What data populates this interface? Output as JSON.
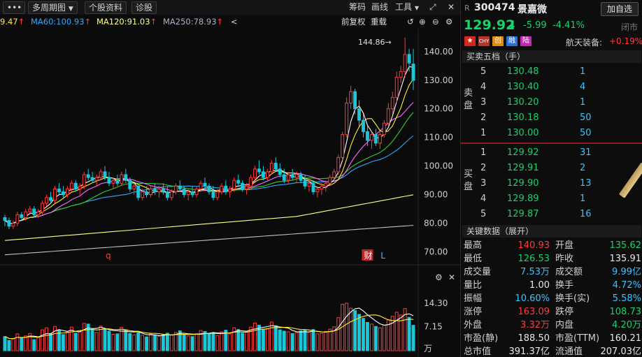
{
  "toolbar": {
    "menu_glyph": "•••",
    "multi_period": "多周期图",
    "stock_info": "个股资料",
    "diagnose": "诊股",
    "chips": "筹码",
    "draw_line": "画线",
    "tools": "工具",
    "expand_glyph": "⤢",
    "close_glyph": "✕"
  },
  "ma_legend": {
    "ma_partial": "9.47",
    "ma60": "MA60:100.93",
    "ma120": "MA120:91.03",
    "ma250": "MA250:78.93",
    "up_arrow": "↑",
    "collapse": "<",
    "adjust": "前复权",
    "reset": "重载"
  },
  "colors": {
    "up": "#ff3b3b",
    "down": "#18c8d8",
    "ma5": "#ffffff",
    "ma10": "#ffee33",
    "ma20": "#ff66ff",
    "ma30": "#33cc33",
    "ma60": "#2fa8ff",
    "ma120": "#ffff88",
    "ma250": "#c0c0c0"
  },
  "chart": {
    "price_ticks": [
      "140.00",
      "130.00",
      "120.00",
      "110.00",
      "100.00",
      "90.00",
      "80.00",
      "70.00"
    ],
    "high_label": "144.86→",
    "markers": [
      {
        "label": "q",
        "boxed": false
      },
      {
        "label": "财",
        "boxed": true
      },
      {
        "label": "L",
        "boxed": false
      }
    ],
    "volume_ticks": [
      "14.30",
      "7.15",
      "万"
    ]
  },
  "chart_data": {
    "type": "candlestick",
    "ylim": [
      66,
      148
    ],
    "volume_max": 14.3,
    "candles": [
      [
        82,
        83,
        79,
        81
      ],
      [
        81,
        82,
        78,
        79
      ],
      [
        79,
        81,
        78,
        80
      ],
      [
        80,
        84,
        79,
        83
      ],
      [
        83,
        84,
        81,
        82
      ],
      [
        82,
        85,
        81,
        84
      ],
      [
        84,
        86,
        83,
        85
      ],
      [
        85,
        86,
        82,
        83
      ],
      [
        83,
        85,
        82,
        84
      ],
      [
        84,
        88,
        83,
        87
      ],
      [
        87,
        90,
        86,
        89
      ],
      [
        89,
        91,
        87,
        88
      ],
      [
        88,
        93,
        87,
        92
      ],
      [
        92,
        94,
        90,
        91
      ],
      [
        91,
        93,
        89,
        90
      ],
      [
        90,
        93,
        89,
        92
      ],
      [
        92,
        95,
        91,
        94
      ],
      [
        94,
        95,
        91,
        92
      ],
      [
        92,
        94,
        90,
        93
      ],
      [
        93,
        98,
        92,
        97
      ],
      [
        97,
        99,
        95,
        96
      ],
      [
        96,
        98,
        94,
        95
      ],
      [
        95,
        97,
        93,
        96
      ],
      [
        96,
        99,
        95,
        98
      ],
      [
        98,
        100,
        95,
        96
      ],
      [
        96,
        98,
        93,
        94
      ],
      [
        94,
        96,
        92,
        95
      ],
      [
        95,
        97,
        93,
        94
      ],
      [
        94,
        98,
        93,
        97
      ],
      [
        97,
        99,
        94,
        95
      ],
      [
        95,
        96,
        91,
        92
      ],
      [
        92,
        94,
        90,
        93
      ],
      [
        93,
        94,
        88,
        89
      ],
      [
        89,
        92,
        88,
        91
      ],
      [
        91,
        93,
        89,
        90
      ],
      [
        90,
        93,
        89,
        92
      ],
      [
        92,
        94,
        90,
        91
      ],
      [
        91,
        93,
        89,
        92
      ],
      [
        92,
        94,
        90,
        91
      ],
      [
        91,
        93,
        88,
        89
      ],
      [
        89,
        92,
        88,
        91
      ],
      [
        91,
        94,
        90,
        93
      ],
      [
        93,
        95,
        91,
        92
      ],
      [
        92,
        93,
        89,
        90
      ],
      [
        90,
        92,
        88,
        91
      ],
      [
        91,
        93,
        89,
        90
      ],
      [
        90,
        93,
        89,
        92
      ],
      [
        92,
        95,
        91,
        94
      ],
      [
        94,
        96,
        92,
        93
      ],
      [
        93,
        94,
        90,
        91
      ],
      [
        91,
        93,
        88,
        89
      ],
      [
        89,
        92,
        88,
        91
      ],
      [
        91,
        94,
        90,
        93
      ],
      [
        93,
        95,
        90,
        91
      ],
      [
        91,
        93,
        89,
        92
      ],
      [
        92,
        96,
        91,
        95
      ],
      [
        95,
        97,
        93,
        94
      ],
      [
        94,
        95,
        91,
        92
      ],
      [
        92,
        94,
        90,
        93
      ],
      [
        93,
        97,
        92,
        96
      ],
      [
        96,
        100,
        95,
        99
      ],
      [
        99,
        102,
        97,
        98
      ],
      [
        98,
        100,
        95,
        96
      ],
      [
        96,
        99,
        95,
        98
      ],
      [
        98,
        102,
        97,
        101
      ],
      [
        101,
        103,
        98,
        99
      ],
      [
        99,
        101,
        96,
        97
      ],
      [
        97,
        99,
        94,
        95
      ],
      [
        95,
        98,
        94,
        97
      ],
      [
        97,
        99,
        95,
        96
      ],
      [
        96,
        98,
        94,
        97
      ],
      [
        97,
        98,
        94,
        95
      ],
      [
        95,
        97,
        92,
        93
      ],
      [
        93,
        95,
        91,
        94
      ],
      [
        94,
        95,
        90,
        91
      ],
      [
        91,
        93,
        89,
        92
      ],
      [
        92,
        94,
        90,
        93
      ],
      [
        93,
        95,
        91,
        94
      ],
      [
        94,
        97,
        93,
        96
      ],
      [
        96,
        99,
        95,
        98
      ],
      [
        98,
        104,
        97,
        103
      ],
      [
        103,
        112,
        102,
        111
      ],
      [
        111,
        124,
        110,
        122
      ],
      [
        122,
        128,
        120,
        126
      ],
      [
        126,
        127,
        118,
        120
      ],
      [
        120,
        123,
        114,
        116
      ],
      [
        116,
        118,
        110,
        112
      ],
      [
        112,
        114,
        107,
        109
      ],
      [
        109,
        112,
        106,
        111
      ],
      [
        111,
        113,
        107,
        108
      ],
      [
        108,
        112,
        106,
        111
      ],
      [
        111,
        116,
        110,
        115
      ],
      [
        115,
        122,
        114,
        120
      ],
      [
        120,
        126,
        118,
        124
      ],
      [
        124,
        133,
        122,
        131
      ],
      [
        131,
        135,
        129,
        133
      ],
      [
        133,
        144.86,
        131,
        139
      ],
      [
        139,
        140.93,
        133,
        136
      ],
      [
        135.62,
        140.93,
        126.53,
        129.92
      ]
    ],
    "volumes": [
      4.2,
      3.1,
      3.5,
      5.0,
      3.8,
      4.4,
      5.1,
      3.3,
      3.9,
      6.2,
      6.8,
      5.1,
      7.2,
      6.0,
      4.8,
      5.5,
      7.0,
      5.2,
      5.6,
      8.1,
      7.9,
      6.1,
      5.4,
      7.3,
      6.5,
      5.8,
      4.9,
      5.0,
      6.9,
      6.2,
      5.1,
      4.7,
      5.3,
      4.6,
      4.1,
      5.0,
      4.5,
      4.3,
      4.7,
      5.2,
      4.6,
      5.4,
      5.9,
      4.8,
      4.4,
      4.2,
      5.1,
      6.0,
      5.7,
      4.9,
      5.3,
      4.5,
      5.6,
      6.1,
      5.0,
      6.8,
      6.3,
      5.2,
      5.5,
      7.0,
      8.2,
      7.6,
      6.4,
      6.6,
      8.5,
      7.4,
      6.2,
      5.8,
      5.6,
      5.1,
      5.4,
      5.9,
      6.1,
      5.5,
      6.3,
      5.0,
      5.2,
      5.7,
      6.4,
      7.1,
      9.8,
      13.8,
      14.1,
      12.6,
      11.9,
      10.8,
      9.6,
      8.4,
      7.9,
      7.2,
      6.8,
      7.6,
      9.1,
      10.2,
      11.4,
      10.6,
      12.5,
      9.9,
      7.53
    ]
  },
  "quote": {
    "prefix": "R",
    "code": "300474",
    "name": "景嘉微",
    "add_watch": "加自选",
    "price": "129.92",
    "arrow": "⬇",
    "change": "-5.99",
    "pct": "-4.41%",
    "status": "闭市",
    "badges": [
      "CHY",
      "创",
      "融",
      "陆"
    ],
    "sector_name": "航天装备:",
    "sector_pct": "+0.19%"
  },
  "orderbook": {
    "title": "买卖五档（手）",
    "sell_label": [
      "卖",
      "盘"
    ],
    "buy_label": [
      "买",
      "盘"
    ],
    "asks": [
      {
        "level": "5",
        "price": "130.48",
        "vol": "1"
      },
      {
        "level": "4",
        "price": "130.40",
        "vol": "4"
      },
      {
        "level": "3",
        "price": "130.20",
        "vol": "1"
      },
      {
        "level": "2",
        "price": "130.18",
        "vol": "50"
      },
      {
        "level": "1",
        "price": "130.00",
        "vol": "50"
      }
    ],
    "bids": [
      {
        "level": "1",
        "price": "129.92",
        "vol": "31"
      },
      {
        "level": "2",
        "price": "129.91",
        "vol": "2"
      },
      {
        "level": "3",
        "price": "129.90",
        "vol": "13"
      },
      {
        "level": "4",
        "price": "129.89",
        "vol": "1"
      },
      {
        "level": "5",
        "price": "129.87",
        "vol": "16"
      }
    ]
  },
  "keydata": {
    "title": "关键数据（展开）",
    "rows": [
      {
        "l1": "最高",
        "v1": "140.93",
        "c1": "red",
        "l2": "开盘",
        "v2": "135.62",
        "c2": "green"
      },
      {
        "l1": "最低",
        "v1": "126.53",
        "c1": "green",
        "l2": "昨收",
        "v2": "135.91",
        "c2": "white"
      },
      {
        "l1": "成交量",
        "v1": "7.53万",
        "c1": "cyan",
        "l2": "成交额",
        "v2": "9.99亿",
        "c2": "cyan"
      },
      {
        "l1": "量比",
        "v1": "1.00",
        "c1": "white",
        "l2": "换手",
        "v2": "4.72%",
        "c2": "cyan"
      },
      {
        "l1": "振幅",
        "v1": "10.60%",
        "c1": "cyan",
        "l2": "换手(实)",
        "v2": "5.58%",
        "c2": "cyan"
      },
      {
        "l1": "涨停",
        "v1": "163.09",
        "c1": "red",
        "l2": "跌停",
        "v2": "108.73",
        "c2": "green"
      },
      {
        "l1": "外盘",
        "v1": "3.32万",
        "c1": "red",
        "l2": "内盘",
        "v2": "4.20万",
        "c2": "green"
      },
      {
        "l1": "市盈(静)",
        "v1": "188.50",
        "c1": "white",
        "l2": "市盈(TTM)",
        "v2": "160.21",
        "c2": "white"
      },
      {
        "l1": "总市值",
        "v1": "391.37亿",
        "c1": "white",
        "l2": "流通值",
        "v2": "207.03亿",
        "c2": "white"
      }
    ]
  }
}
